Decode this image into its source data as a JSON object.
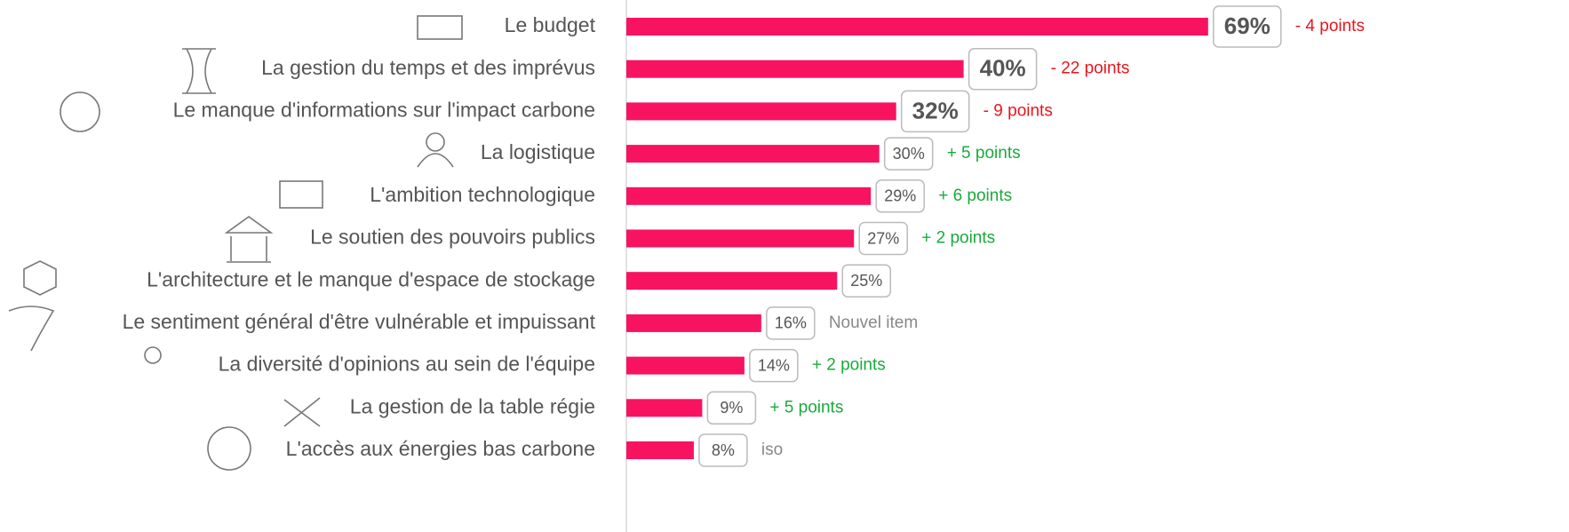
{
  "chart_data": {
    "type": "bar",
    "orientation": "horizontal",
    "categories": [
      "Le budget",
      "La gestion du temps et des imprévus",
      "Le manque d'informations sur l'impact carbone",
      "La logistique",
      "L'ambition technologique",
      "Le soutien des pouvoirs publics",
      "L'architecture et le manque d'espace de stockage",
      "Le sentiment général d'être vulnérable et impuissant",
      "La diversité d'opinions au sein de l'équipe",
      "La gestion de la table régie",
      "L'accès aux énergies bas carbone"
    ],
    "values": [
      69,
      40,
      32,
      30,
      29,
      27,
      25,
      16,
      14,
      9,
      8
    ],
    "value_labels": [
      "69%",
      "40%",
      "32%",
      "30%",
      "29%",
      "27%",
      "25%",
      "16%",
      "14%",
      "9%",
      "8%"
    ],
    "changes": [
      "- 4 points",
      "- 22 points",
      "- 9 points",
      "+ 5 points",
      "+ 6 points",
      "+ 2 points",
      null,
      "Nouvel item",
      "+ 2 points",
      "+ 5 points",
      "iso"
    ],
    "change_colors": [
      "#e8161d",
      "#e8161d",
      "#e8161d",
      "#1aaa3c",
      "#1aaa3c",
      "#1aaa3c",
      null,
      "#888888",
      "#1aaa3c",
      "#1aaa3c",
      "#888888"
    ],
    "color": "#f7135f",
    "xlim": [
      0,
      100
    ]
  }
}
